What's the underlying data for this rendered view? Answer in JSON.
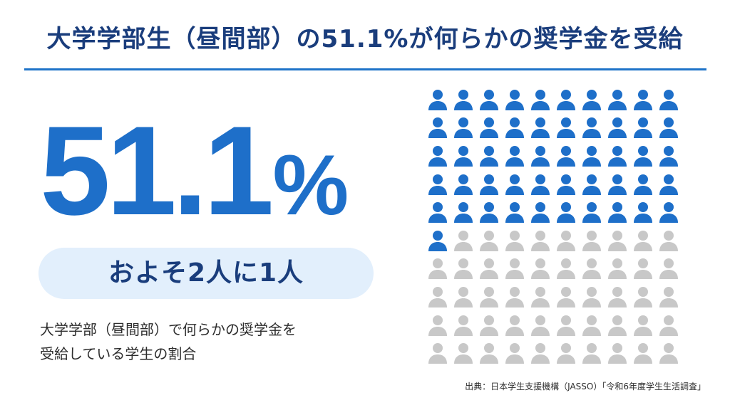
{
  "title": "大学学部生（昼間部）の51.1%が何らかの奨学金を受給",
  "headline": {
    "number": "51.1",
    "unit": "%"
  },
  "pill_text": "およそ2人に1人",
  "description": {
    "line1": "大学学部（昼間部）で何らかの奨学金を",
    "line2": "受給している学生の割合"
  },
  "source": "出典：日本学生支援機構（JASSO）「令和6年度学生生活調査」",
  "colors": {
    "accent": "#1e6fc9",
    "title": "#1a3d7c",
    "inactive": "#c8c8c8",
    "pill_bg": "#e2effc"
  },
  "icon_grid": {
    "icon": "person-icon",
    "total": 100,
    "highlighted": 51
  }
}
